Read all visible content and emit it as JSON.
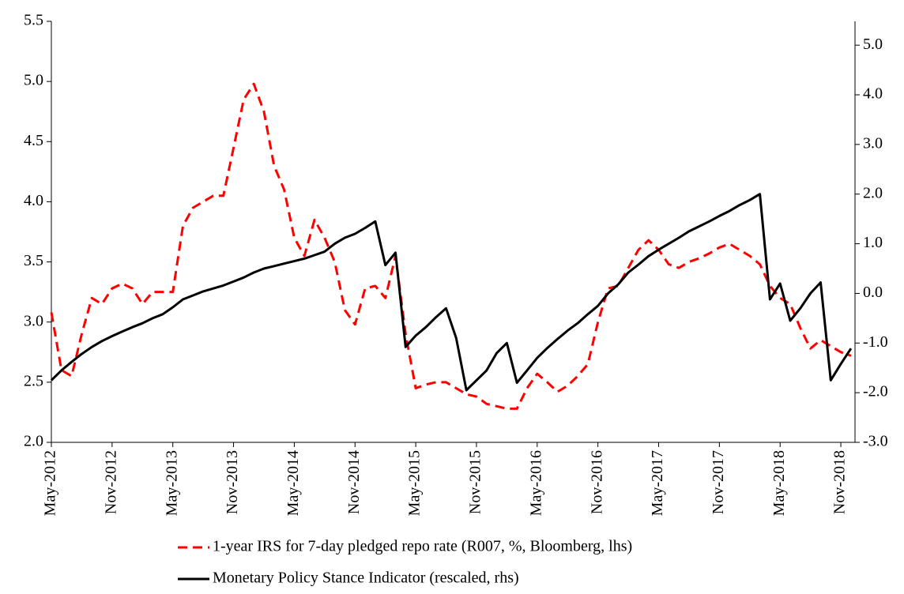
{
  "chart_data": {
    "type": "line",
    "categories": [
      "May-2012",
      null,
      null,
      null,
      null,
      null,
      "Nov-2012",
      null,
      null,
      null,
      null,
      null,
      "May-2013",
      null,
      null,
      null,
      null,
      null,
      "Nov-2013",
      null,
      null,
      null,
      null,
      null,
      "May-2014",
      null,
      null,
      null,
      null,
      null,
      "Nov-2014",
      null,
      null,
      null,
      null,
      null,
      "May-2015",
      null,
      null,
      null,
      null,
      null,
      "Nov-2015",
      null,
      null,
      null,
      null,
      null,
      "May-2016",
      null,
      null,
      null,
      null,
      null,
      "Nov-2016",
      null,
      null,
      null,
      null,
      null,
      "May-2017",
      null,
      null,
      null,
      null,
      null,
      "Nov-2017",
      null,
      null,
      null,
      null,
      null,
      "May-2018",
      null,
      null,
      null,
      null,
      null,
      "Nov-2018",
      null
    ],
    "series": [
      {
        "name": "1-year IRS for 7-day pledged repo rate (R007, %, Bloomberg, lhs)",
        "color": "#ff0000",
        "style": "dashed",
        "axis": "y",
        "values": [
          3.08,
          2.6,
          2.55,
          2.9,
          3.2,
          3.15,
          3.28,
          3.32,
          3.28,
          3.15,
          3.25,
          3.25,
          3.25,
          3.8,
          3.95,
          4.0,
          4.05,
          4.05,
          4.45,
          4.85,
          4.98,
          4.75,
          4.3,
          4.1,
          3.7,
          3.55,
          3.85,
          3.7,
          3.5,
          3.1,
          2.98,
          3.28,
          3.3,
          3.2,
          3.55,
          2.9,
          2.45,
          2.48,
          2.5,
          2.5,
          2.45,
          2.4,
          2.38,
          2.32,
          2.3,
          2.28,
          2.28,
          2.45,
          2.57,
          2.5,
          2.42,
          2.47,
          2.55,
          2.65,
          3.0,
          3.28,
          3.3,
          3.45,
          3.6,
          3.68,
          3.6,
          3.48,
          3.45,
          3.5,
          3.53,
          3.57,
          3.62,
          3.65,
          3.6,
          3.55,
          3.48,
          3.3,
          3.2,
          3.15,
          2.95,
          2.78,
          2.85,
          2.8,
          2.75,
          2.72
        ]
      },
      {
        "name": "Monetary Policy Stance Indicator (rescaled, rhs)",
        "color": "#000000",
        "style": "solid",
        "axis": "y2",
        "values": [
          -1.75,
          -1.55,
          -1.38,
          -1.22,
          -1.08,
          -0.96,
          -0.86,
          -0.77,
          -0.68,
          -0.6,
          -0.5,
          -0.42,
          -0.28,
          -0.12,
          -0.04,
          0.04,
          0.1,
          0.16,
          0.24,
          0.32,
          0.42,
          0.5,
          0.55,
          0.6,
          0.65,
          0.7,
          0.77,
          0.84,
          1.0,
          1.12,
          1.2,
          1.32,
          1.45,
          0.57,
          0.82,
          -1.08,
          -0.85,
          -0.68,
          -0.48,
          -0.3,
          -0.9,
          -1.95,
          -1.75,
          -1.55,
          -1.2,
          -1.0,
          -1.8,
          -1.55,
          -1.3,
          -1.1,
          -0.92,
          -0.75,
          -0.6,
          -0.42,
          -0.25,
          0.0,
          0.18,
          0.42,
          0.58,
          0.75,
          0.88,
          1.0,
          1.12,
          1.25,
          1.35,
          1.45,
          1.56,
          1.66,
          1.78,
          1.88,
          2.0,
          -0.12,
          0.2,
          -0.55,
          -0.3,
          0.0,
          0.22,
          -1.75,
          -1.42,
          -1.11
        ]
      }
    ],
    "ylim": [
      2.0,
      5.5
    ],
    "yticks": [
      {
        "value": 2.0,
        "label": "2.0"
      },
      {
        "value": 2.5,
        "label": "2.5"
      },
      {
        "value": 3.0,
        "label": "3.0"
      },
      {
        "value": 3.5,
        "label": "3.5"
      },
      {
        "value": 4.0,
        "label": "4.0"
      },
      {
        "value": 4.5,
        "label": "4.5"
      },
      {
        "value": 5.0,
        "label": "5.0"
      },
      {
        "value": 5.5,
        "label": "5.5"
      }
    ],
    "y2lim": [
      -3.0,
      5.48
    ],
    "y2ticks": [
      {
        "value": -3.0,
        "label": "-3.0"
      },
      {
        "value": -2.0,
        "label": "-2.0"
      },
      {
        "value": -1.0,
        "label": "-1.0"
      },
      {
        "value": 0.0,
        "label": "0.0"
      },
      {
        "value": 1.0,
        "label": "1.0"
      },
      {
        "value": 2.0,
        "label": "2.0"
      },
      {
        "value": 3.0,
        "label": "3.0"
      },
      {
        "value": 4.0,
        "label": "4.0"
      },
      {
        "value": 5.0,
        "label": "5.0"
      }
    ],
    "legend": "bottom"
  }
}
